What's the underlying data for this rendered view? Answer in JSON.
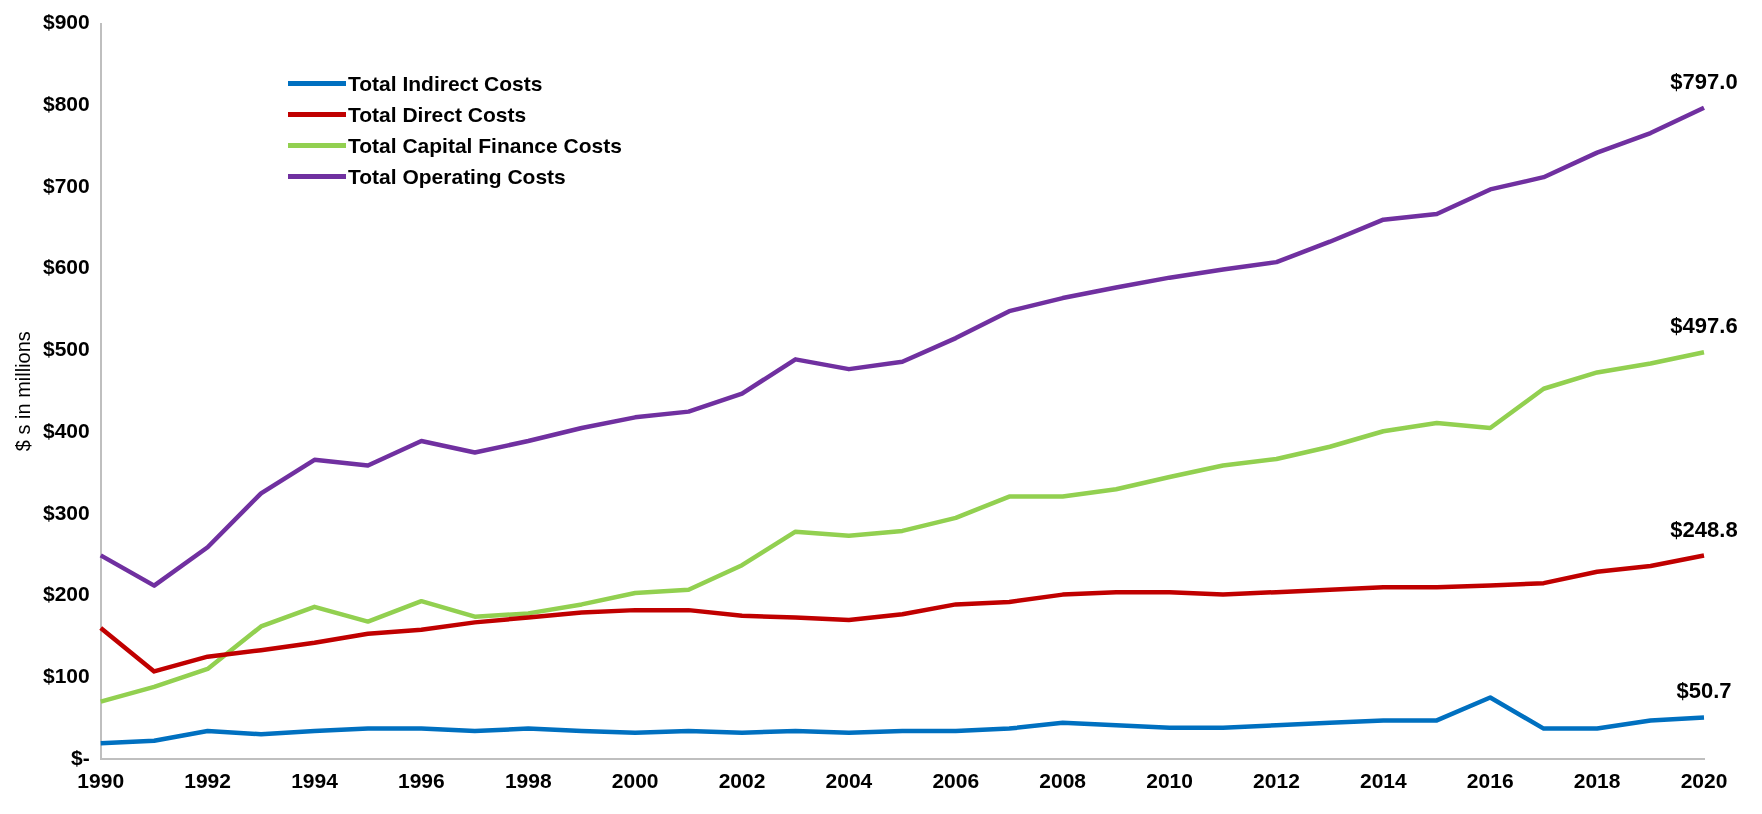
{
  "chart_data": {
    "type": "line",
    "ylabel": "$ s in millions",
    "categories": [
      "1990",
      null,
      "1992",
      null,
      "1994",
      null,
      "1996",
      null,
      "1998",
      null,
      "2000",
      null,
      "2002",
      null,
      "2004",
      null,
      "2006",
      null,
      "2008",
      null,
      "2010",
      null,
      "2012",
      null,
      "2014",
      null,
      "2016",
      null,
      "2018",
      null,
      "2020"
    ],
    "series": [
      {
        "name": "Total Indirect Costs",
        "color": "#0070c0",
        "values": [
          19,
          22,
          34,
          30,
          34,
          37,
          37,
          34,
          37,
          34,
          32,
          34,
          32,
          34,
          32,
          34,
          34,
          37,
          44,
          41,
          38,
          38,
          41,
          44,
          47,
          47,
          75,
          37,
          37,
          47,
          50.7
        ]
      },
      {
        "name": "Total Direct Costs",
        "color": "#c00000",
        "values": [
          160,
          107,
          125,
          133,
          142,
          153,
          158,
          167,
          173,
          179,
          182,
          182,
          175,
          173,
          170,
          177,
          189,
          192,
          201,
          204,
          204,
          201,
          204,
          207,
          210,
          210,
          212,
          215,
          229,
          236,
          248.8
        ]
      },
      {
        "name": "Total Capital Finance Costs",
        "color": "#92d050",
        "values": [
          70,
          88,
          110,
          162,
          186,
          168,
          193,
          174,
          178,
          189,
          203,
          207,
          237,
          278,
          273,
          279,
          295,
          321,
          321,
          330,
          345,
          359,
          367,
          382,
          401,
          411,
          405,
          453,
          473,
          484,
          497.6
        ]
      },
      {
        "name": "Total Operating Costs",
        "color": "#7030a0",
        "values": [
          249,
          212,
          259,
          325,
          366,
          359,
          389,
          375,
          389,
          405,
          418,
          425,
          447,
          489,
          477,
          486,
          515,
          548,
          564,
          577,
          589,
          599,
          608,
          633,
          660,
          667,
          697,
          712,
          742,
          766,
          797
        ]
      }
    ],
    "ylim": [
      0,
      900
    ],
    "yticks": [
      {
        "value": 0,
        "label": "$-"
      },
      {
        "value": 100,
        "label": "$100"
      },
      {
        "value": 200,
        "label": "$200"
      },
      {
        "value": 300,
        "label": "$300"
      },
      {
        "value": 400,
        "label": "$400"
      },
      {
        "value": 500,
        "label": "$500"
      },
      {
        "value": 600,
        "label": "$600"
      },
      {
        "value": 700,
        "label": "$700"
      },
      {
        "value": 800,
        "label": "$800"
      },
      {
        "value": 900,
        "label": "$900"
      }
    ],
    "annotations": [
      {
        "text": "$797.0",
        "x": "2020",
        "y": 797
      },
      {
        "text": "$497.6",
        "x": "2020",
        "y": 497.6
      },
      {
        "text": "$248.8",
        "x": "2020",
        "y": 248.8
      },
      {
        "text": "$50.7",
        "x": "2020",
        "y": 50.7
      }
    ],
    "legend": "top left",
    "grid": false,
    "marker": "none",
    "line_style": "solid"
  }
}
